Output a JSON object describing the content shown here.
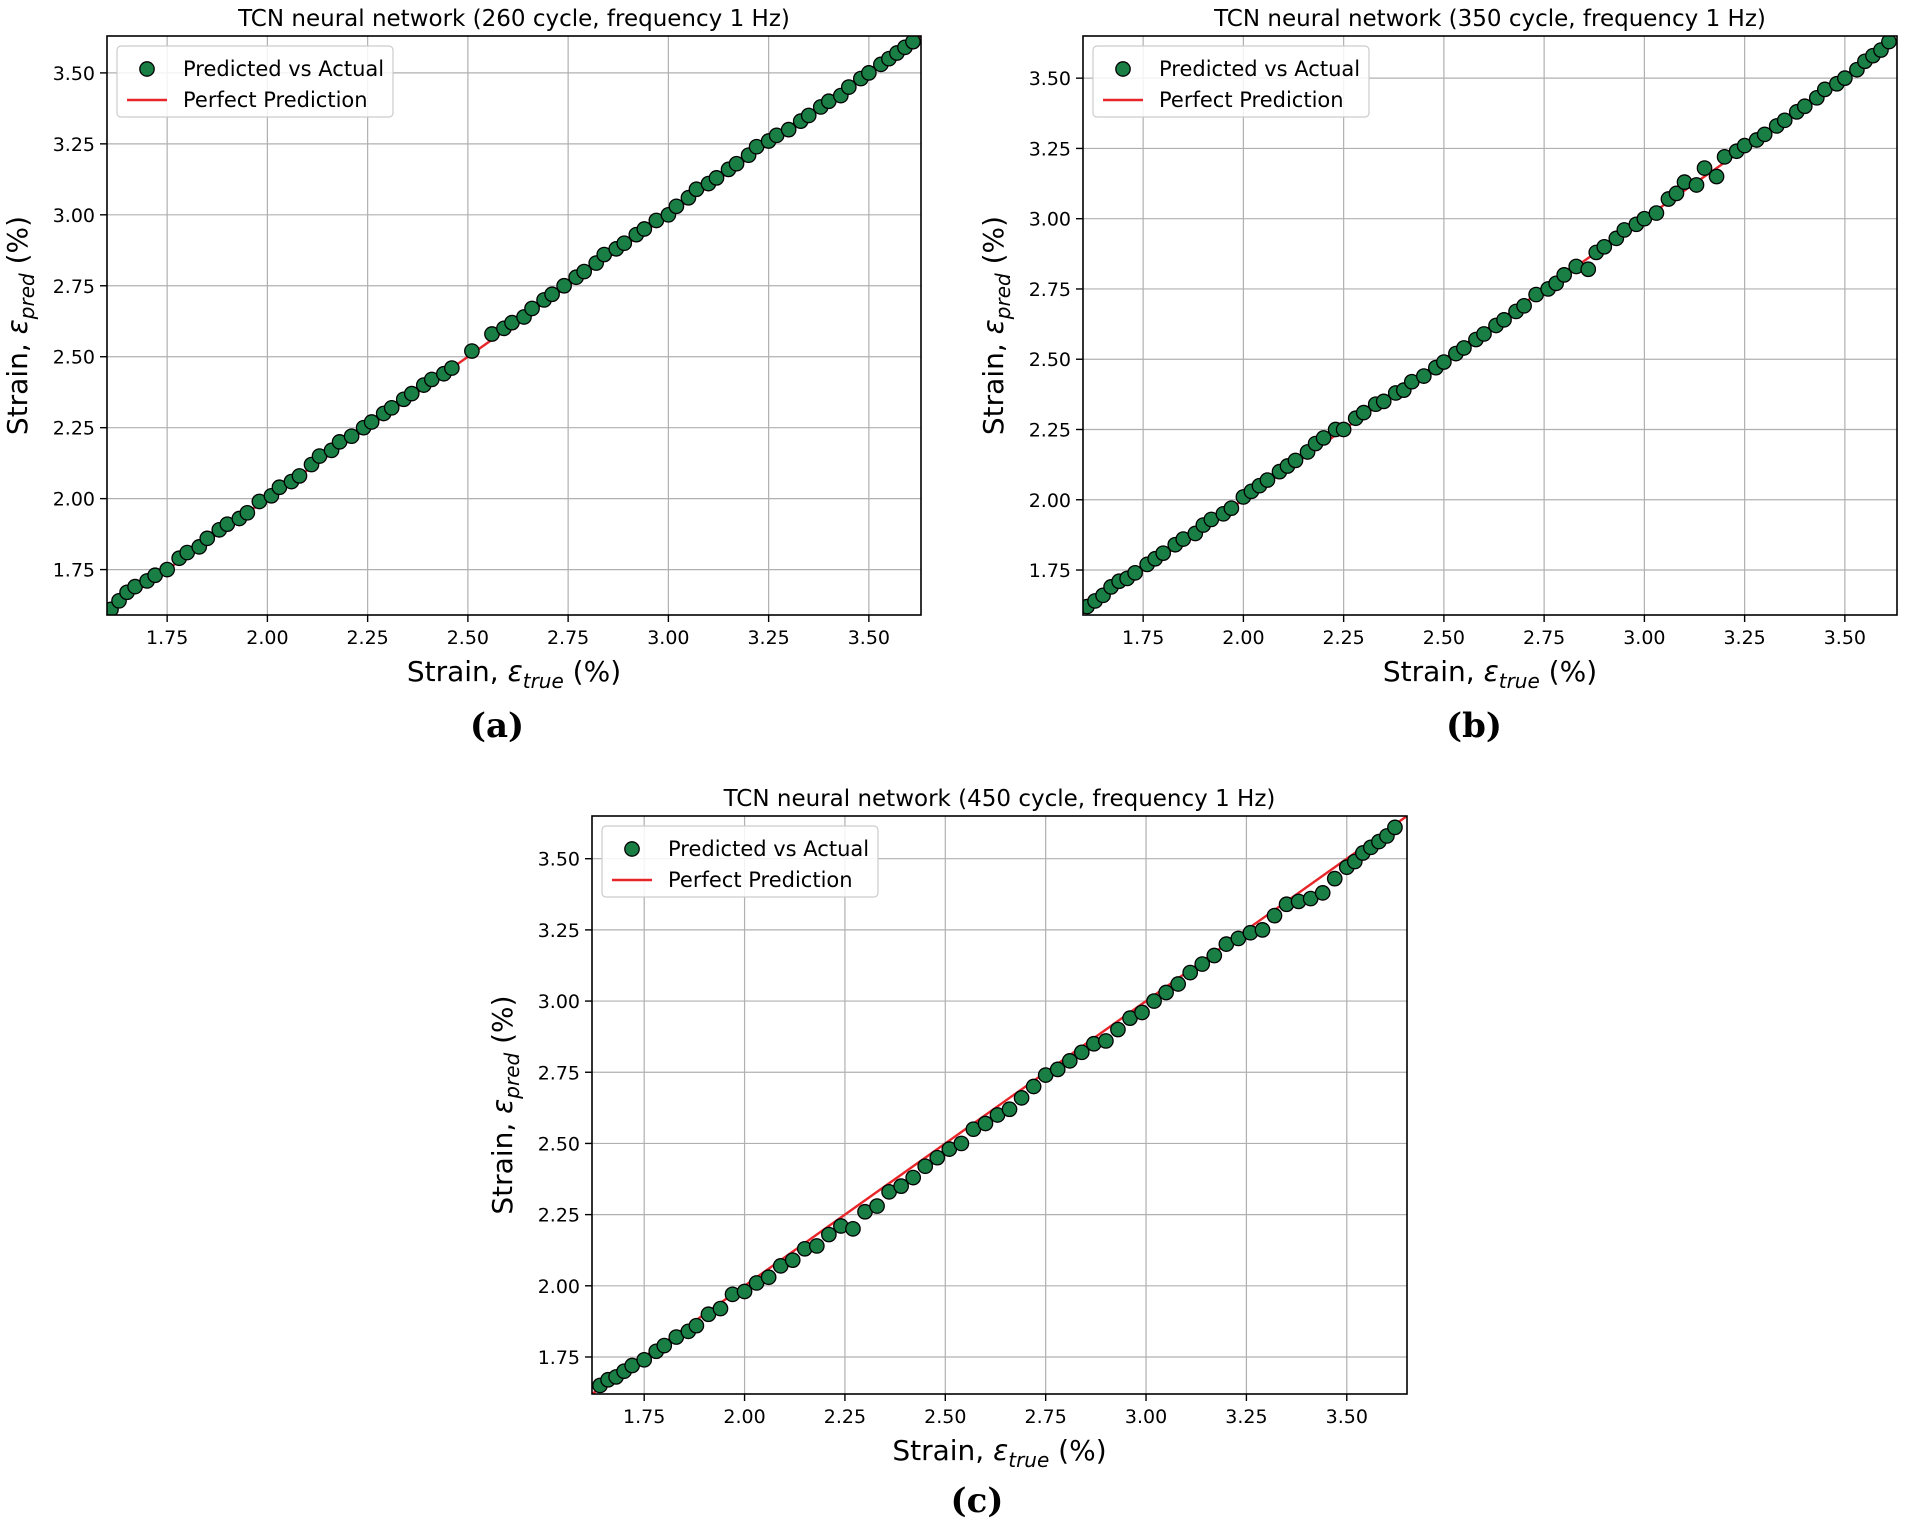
{
  "chart_data": [
    {
      "panel": "(a)",
      "type": "scatter",
      "title": "TCN neural network (260 cycle, frequency 1 Hz)",
      "xlabel": {
        "main": "Strain, ",
        "symbol": "ε",
        "sub": "true",
        "unit": " (%)"
      },
      "ylabel": {
        "main": "Strain, ",
        "symbol": "ε",
        "sub": "pred",
        "unit": " (%)"
      },
      "xlim": [
        1.6,
        3.63
      ],
      "ylim": [
        1.59,
        3.63
      ],
      "xticks": [
        "1.75",
        "2.00",
        "2.25",
        "2.50",
        "2.75",
        "3.00",
        "3.25",
        "3.50"
      ],
      "yticks": [
        "1.75",
        "2.00",
        "2.25",
        "2.50",
        "2.75",
        "3.00",
        "3.25",
        "3.50"
      ],
      "grid": true,
      "legend_position": "top-left",
      "series": [
        {
          "name": "Predicted vs Actual",
          "kind": "scatter",
          "color": "#1a7f45",
          "x": [
            1.61,
            1.63,
            1.65,
            1.67,
            1.7,
            1.72,
            1.75,
            1.78,
            1.8,
            1.83,
            1.85,
            1.88,
            1.9,
            1.93,
            1.95,
            1.98,
            2.01,
            2.03,
            2.06,
            2.08,
            2.11,
            2.13,
            2.16,
            2.18,
            2.21,
            2.24,
            2.26,
            2.29,
            2.31,
            2.34,
            2.36,
            2.39,
            2.41,
            2.44,
            2.46,
            2.51,
            2.56,
            2.59,
            2.61,
            2.64,
            2.66,
            2.69,
            2.71,
            2.74,
            2.77,
            2.79,
            2.82,
            2.84,
            2.87,
            2.89,
            2.92,
            2.94,
            2.97,
            3.0,
            3.02,
            3.05,
            3.07,
            3.1,
            3.12,
            3.15,
            3.17,
            3.2,
            3.22,
            3.25,
            3.27,
            3.3,
            3.33,
            3.35,
            3.38,
            3.4,
            3.43,
            3.45,
            3.48,
            3.5,
            3.53,
            3.55,
            3.57,
            3.59,
            3.61
          ],
          "y": [
            1.61,
            1.64,
            1.67,
            1.69,
            1.71,
            1.73,
            1.75,
            1.79,
            1.81,
            1.83,
            1.86,
            1.89,
            1.91,
            1.93,
            1.95,
            1.99,
            2.01,
            2.04,
            2.06,
            2.08,
            2.12,
            2.15,
            2.17,
            2.2,
            2.22,
            2.25,
            2.27,
            2.3,
            2.32,
            2.35,
            2.37,
            2.4,
            2.42,
            2.44,
            2.46,
            2.52,
            2.58,
            2.6,
            2.62,
            2.64,
            2.67,
            2.7,
            2.72,
            2.75,
            2.78,
            2.8,
            2.83,
            2.86,
            2.88,
            2.9,
            2.93,
            2.95,
            2.98,
            3.0,
            3.03,
            3.06,
            3.09,
            3.11,
            3.13,
            3.16,
            3.18,
            3.21,
            3.24,
            3.26,
            3.28,
            3.3,
            3.33,
            3.35,
            3.38,
            3.4,
            3.42,
            3.45,
            3.48,
            3.5,
            3.53,
            3.55,
            3.57,
            3.59,
            3.61
          ]
        },
        {
          "name": "Perfect Prediction",
          "kind": "line",
          "color": "#e8262a",
          "x": [
            1.6,
            3.63
          ],
          "y": [
            1.6,
            3.63
          ]
        }
      ]
    },
    {
      "panel": "(b)",
      "type": "scatter",
      "title": "TCN neural network (350 cycle, frequency 1 Hz)",
      "xlabel": {
        "main": "Strain, ",
        "symbol": "ε",
        "sub": "true",
        "unit": " (%)"
      },
      "ylabel": {
        "main": "Strain, ",
        "symbol": "ε",
        "sub": "pred",
        "unit": " (%)"
      },
      "xlim": [
        1.6,
        3.63
      ],
      "ylim": [
        1.59,
        3.65
      ],
      "xticks": [
        "1.75",
        "2.00",
        "2.25",
        "2.50",
        "2.75",
        "3.00",
        "3.25",
        "3.50"
      ],
      "yticks": [
        "1.75",
        "2.00",
        "2.25",
        "2.50",
        "2.75",
        "3.00",
        "3.25",
        "3.50"
      ],
      "grid": true,
      "legend_position": "top-left",
      "series": [
        {
          "name": "Predicted vs Actual",
          "kind": "scatter",
          "color": "#1a7f45",
          "x": [
            1.61,
            1.63,
            1.65,
            1.67,
            1.69,
            1.71,
            1.73,
            1.76,
            1.78,
            1.8,
            1.83,
            1.85,
            1.88,
            1.9,
            1.92,
            1.95,
            1.97,
            2.0,
            2.02,
            2.04,
            2.06,
            2.09,
            2.11,
            2.13,
            2.16,
            2.18,
            2.2,
            2.23,
            2.25,
            2.28,
            2.3,
            2.33,
            2.35,
            2.38,
            2.4,
            2.42,
            2.45,
            2.48,
            2.5,
            2.53,
            2.55,
            2.58,
            2.6,
            2.63,
            2.65,
            2.68,
            2.7,
            2.73,
            2.76,
            2.78,
            2.8,
            2.83,
            2.86,
            2.88,
            2.9,
            2.93,
            2.95,
            2.98,
            3.0,
            3.03,
            3.06,
            3.08,
            3.1,
            3.13,
            3.15,
            3.18,
            3.2,
            3.23,
            3.25,
            3.28,
            3.3,
            3.33,
            3.35,
            3.38,
            3.4,
            3.43,
            3.45,
            3.48,
            3.5,
            3.53,
            3.55,
            3.57,
            3.59,
            3.61
          ],
          "y": [
            1.62,
            1.64,
            1.66,
            1.69,
            1.71,
            1.72,
            1.74,
            1.77,
            1.79,
            1.81,
            1.84,
            1.86,
            1.88,
            1.91,
            1.93,
            1.95,
            1.97,
            2.01,
            2.03,
            2.05,
            2.07,
            2.1,
            2.12,
            2.14,
            2.17,
            2.2,
            2.22,
            2.25,
            2.25,
            2.29,
            2.31,
            2.34,
            2.35,
            2.38,
            2.39,
            2.42,
            2.44,
            2.47,
            2.49,
            2.52,
            2.54,
            2.57,
            2.59,
            2.62,
            2.64,
            2.67,
            2.69,
            2.73,
            2.75,
            2.77,
            2.8,
            2.83,
            2.82,
            2.88,
            2.9,
            2.93,
            2.96,
            2.98,
            3.0,
            3.02,
            3.07,
            3.09,
            3.13,
            3.12,
            3.18,
            3.15,
            3.22,
            3.24,
            3.26,
            3.28,
            3.3,
            3.33,
            3.35,
            3.38,
            3.4,
            3.43,
            3.46,
            3.48,
            3.5,
            3.53,
            3.56,
            3.58,
            3.6,
            3.63
          ]
        },
        {
          "name": "Perfect Prediction",
          "kind": "line",
          "color": "#e8262a",
          "x": [
            1.6,
            3.63
          ],
          "y": [
            1.6,
            3.63
          ]
        }
      ]
    },
    {
      "panel": "(c)",
      "type": "scatter",
      "title": "TCN neural network (450 cycle, frequency 1 Hz)",
      "xlabel": {
        "main": "Strain, ",
        "symbol": "ε",
        "sub": "true",
        "unit": " (%)"
      },
      "ylabel": {
        "main": "Strain, ",
        "symbol": "ε",
        "sub": "pred",
        "unit": " (%)"
      },
      "xlim": [
        1.62,
        3.65
      ],
      "ylim": [
        1.62,
        3.65
      ],
      "xticks": [
        "1.75",
        "2.00",
        "2.25",
        "2.50",
        "2.75",
        "3.00",
        "3.25",
        "3.50"
      ],
      "yticks": [
        "1.75",
        "2.00",
        "2.25",
        "2.50",
        "2.75",
        "3.00",
        "3.25",
        "3.50"
      ],
      "grid": true,
      "legend_position": "top-left",
      "series": [
        {
          "name": "Predicted vs Actual",
          "kind": "scatter",
          "color": "#1a7f45",
          "x": [
            1.64,
            1.66,
            1.68,
            1.7,
            1.72,
            1.75,
            1.78,
            1.8,
            1.83,
            1.86,
            1.88,
            1.91,
            1.94,
            1.97,
            2.0,
            2.03,
            2.06,
            2.09,
            2.12,
            2.15,
            2.18,
            2.21,
            2.24,
            2.27,
            2.3,
            2.33,
            2.36,
            2.39,
            2.42,
            2.45,
            2.48,
            2.51,
            2.54,
            2.57,
            2.6,
            2.63,
            2.66,
            2.69,
            2.72,
            2.75,
            2.78,
            2.81,
            2.84,
            2.87,
            2.9,
            2.93,
            2.96,
            2.99,
            3.02,
            3.05,
            3.08,
            3.11,
            3.14,
            3.17,
            3.2,
            3.23,
            3.26,
            3.29,
            3.32,
            3.35,
            3.38,
            3.41,
            3.44,
            3.47,
            3.5,
            3.52,
            3.54,
            3.56,
            3.58,
            3.6,
            3.62
          ],
          "y": [
            1.65,
            1.67,
            1.68,
            1.7,
            1.72,
            1.74,
            1.77,
            1.79,
            1.82,
            1.84,
            1.86,
            1.9,
            1.92,
            1.97,
            1.98,
            2.01,
            2.03,
            2.07,
            2.09,
            2.13,
            2.14,
            2.18,
            2.21,
            2.2,
            2.26,
            2.28,
            2.33,
            2.35,
            2.38,
            2.42,
            2.45,
            2.48,
            2.5,
            2.55,
            2.57,
            2.6,
            2.62,
            2.66,
            2.7,
            2.74,
            2.76,
            2.79,
            2.82,
            2.85,
            2.86,
            2.9,
            2.94,
            2.96,
            3.0,
            3.03,
            3.06,
            3.1,
            3.13,
            3.16,
            3.2,
            3.22,
            3.24,
            3.25,
            3.3,
            3.34,
            3.35,
            3.36,
            3.38,
            3.43,
            3.47,
            3.49,
            3.52,
            3.54,
            3.56,
            3.58,
            3.61
          ]
        },
        {
          "name": "Perfect Prediction",
          "kind": "line",
          "color": "#e8262a",
          "x": [
            1.62,
            3.65
          ],
          "y": [
            1.62,
            3.65
          ]
        }
      ]
    }
  ]
}
